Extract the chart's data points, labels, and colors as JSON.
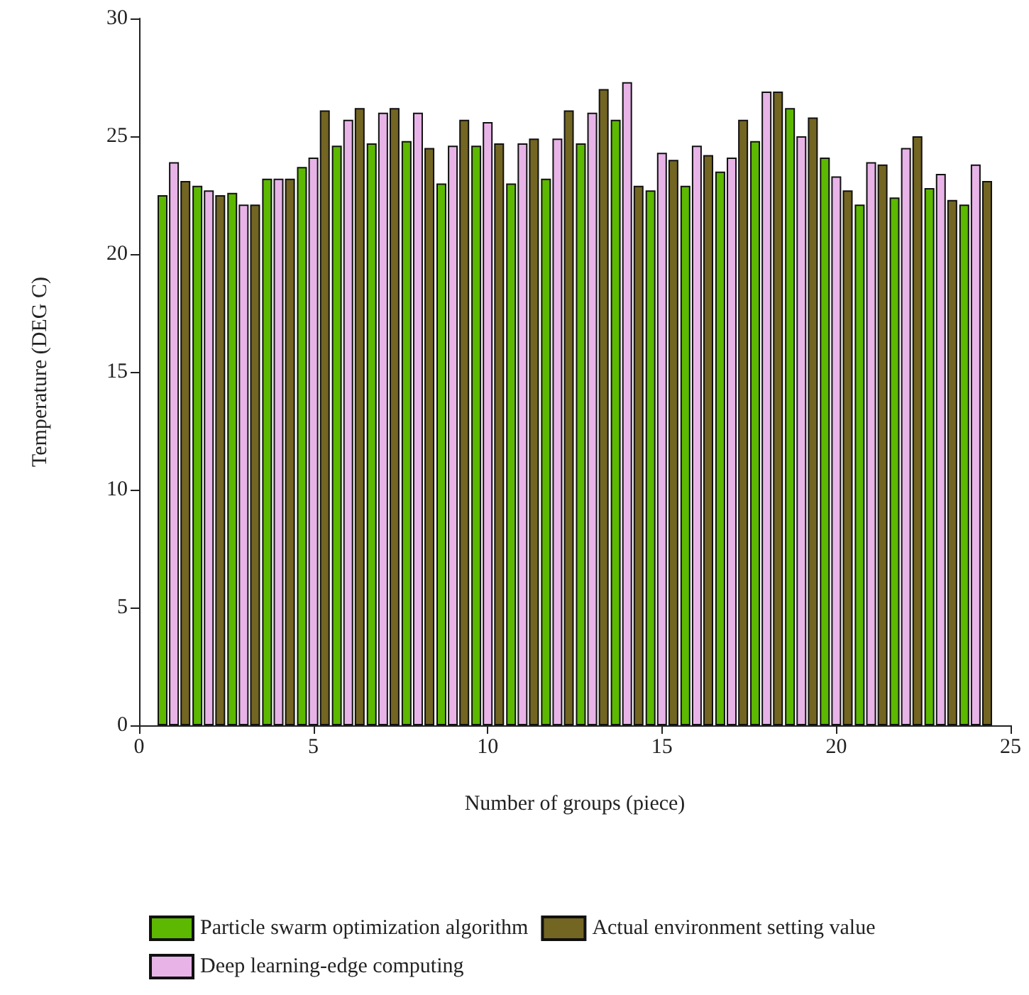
{
  "chart_data": {
    "type": "bar",
    "xlabel": "Number of groups (piece)",
    "ylabel": "Temperature (DEG C)",
    "x": [
      1,
      2,
      3,
      4,
      5,
      6,
      7,
      8,
      9,
      10,
      11,
      12,
      13,
      14,
      15,
      16,
      17,
      18,
      19,
      20,
      21,
      22,
      23,
      24
    ],
    "series": [
      {
        "name": "Particle swarm optimization algorithm",
        "color": "#5cb800",
        "values": [
          22.5,
          22.9,
          22.6,
          23.2,
          23.7,
          24.6,
          24.7,
          24.8,
          23.0,
          24.6,
          23.0,
          23.2,
          24.7,
          25.7,
          22.7,
          22.9,
          23.5,
          24.8,
          26.2,
          24.1,
          22.1,
          22.4,
          22.8,
          22.1
        ]
      },
      {
        "name": "Deep learning-edge computing",
        "color": "#e8b4e8",
        "values": [
          23.9,
          22.7,
          22.1,
          23.2,
          24.1,
          25.7,
          26.0,
          26.0,
          24.6,
          25.6,
          24.7,
          24.9,
          26.0,
          27.3,
          24.3,
          24.6,
          24.1,
          26.9,
          25.0,
          23.3,
          23.9,
          24.5,
          23.4,
          23.8
        ]
      },
      {
        "name": "Actual environment setting value",
        "color": "#736522",
        "values": [
          23.1,
          22.5,
          22.1,
          23.2,
          26.1,
          26.2,
          26.2,
          24.5,
          25.7,
          24.7,
          24.9,
          26.1,
          27.0,
          22.9,
          24.0,
          24.2,
          25.7,
          26.9,
          25.8,
          22.7,
          23.8,
          25.0,
          22.3,
          23.1
        ]
      }
    ],
    "xlim": [
      0,
      25
    ],
    "xticks": [
      0,
      5,
      10,
      15,
      20,
      25
    ],
    "ylim": [
      0,
      30
    ],
    "yticks": [
      0,
      5,
      10,
      15,
      20,
      25,
      30
    ],
    "grid": false,
    "legend": "bottom"
  }
}
